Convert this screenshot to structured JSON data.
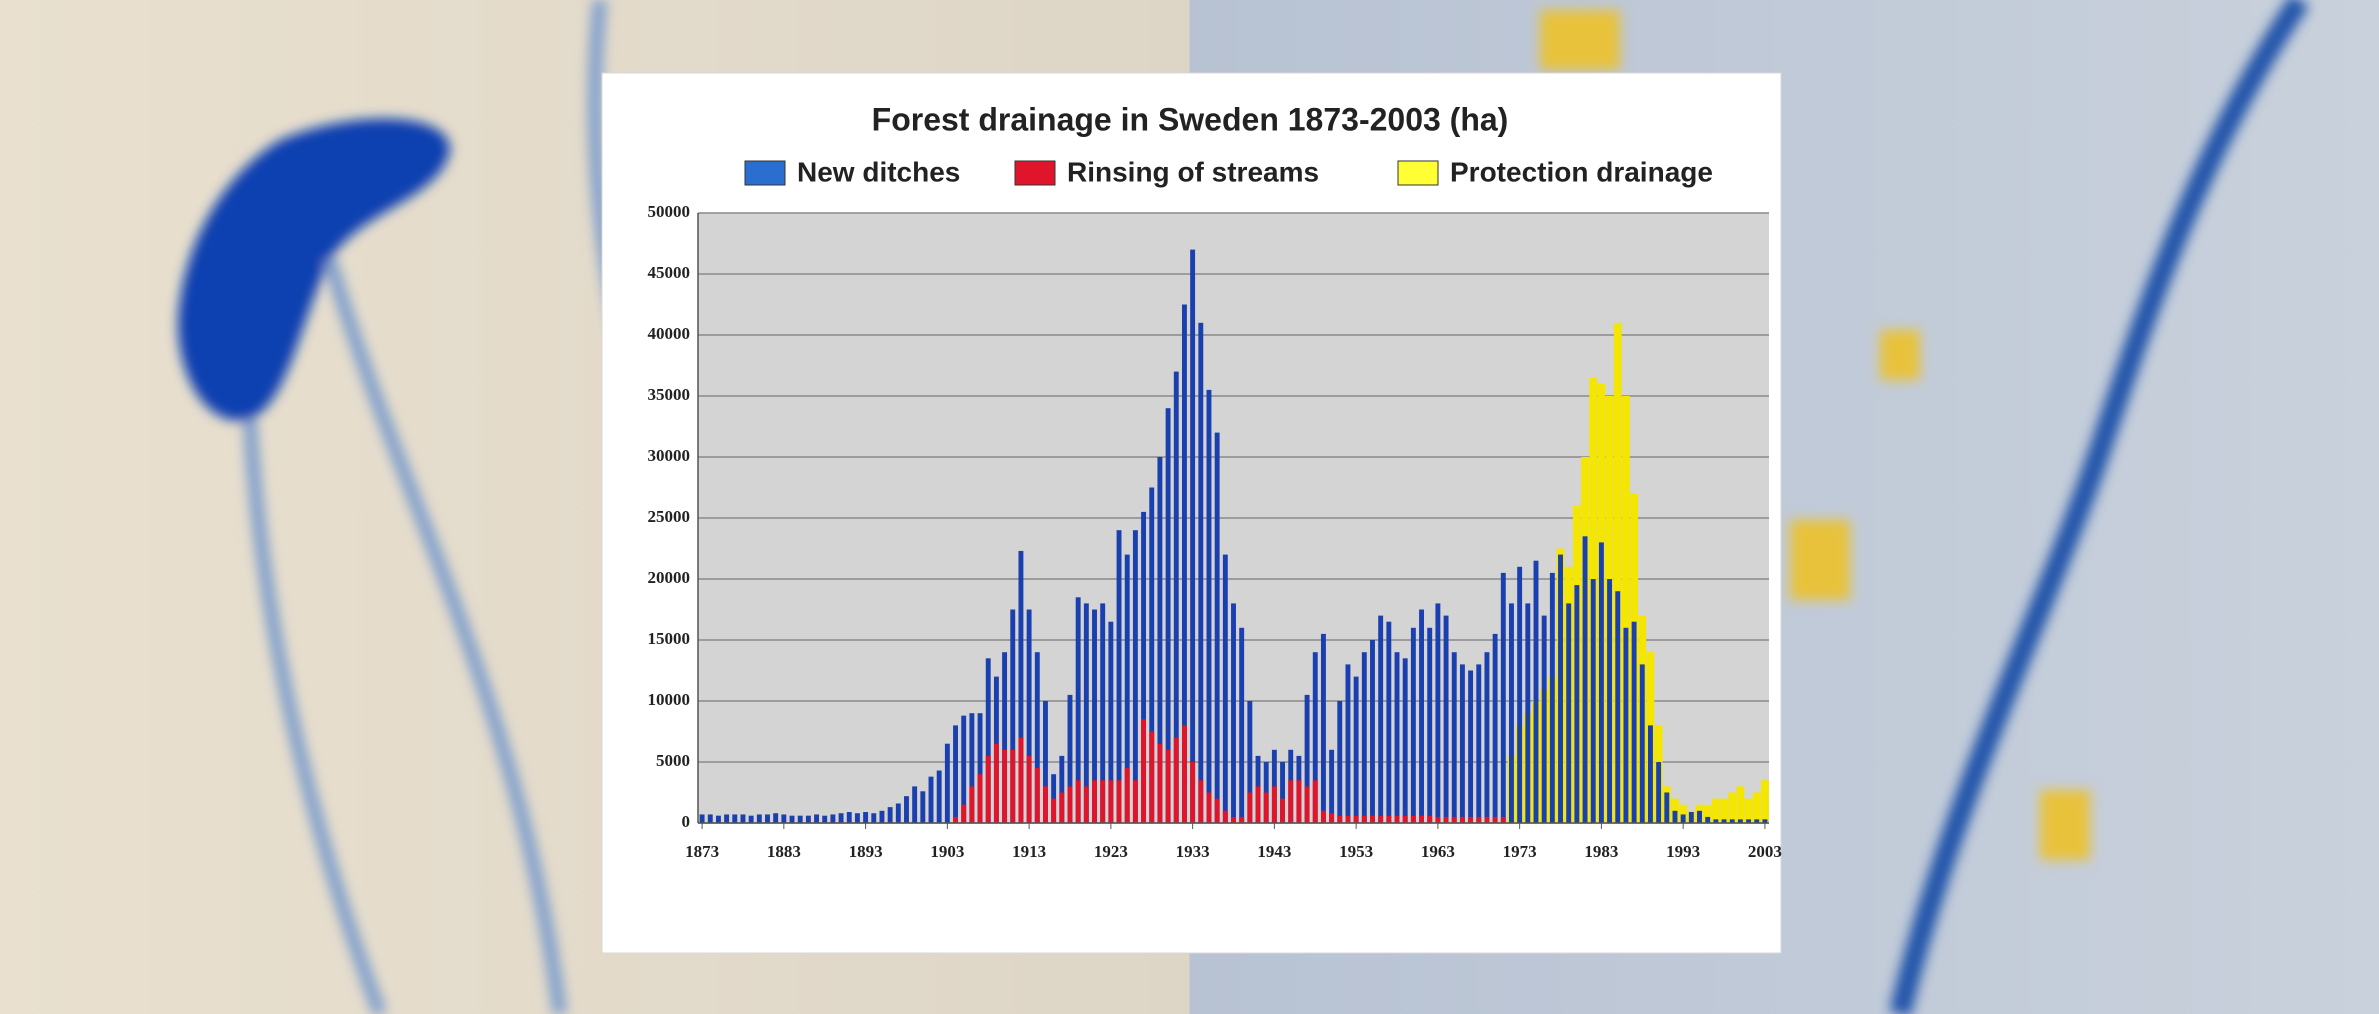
{
  "chart_data": {
    "type": "bar",
    "title": "Forest drainage in Sweden 1873-2003 (ha)",
    "x": [
      1873,
      1874,
      1875,
      1876,
      1877,
      1878,
      1879,
      1880,
      1881,
      1882,
      1883,
      1884,
      1885,
      1886,
      1887,
      1888,
      1889,
      1890,
      1891,
      1892,
      1893,
      1894,
      1895,
      1896,
      1897,
      1898,
      1899,
      1900,
      1901,
      1902,
      1903,
      1904,
      1905,
      1906,
      1907,
      1908,
      1909,
      1910,
      1911,
      1912,
      1913,
      1914,
      1915,
      1916,
      1917,
      1918,
      1919,
      1920,
      1921,
      1922,
      1923,
      1924,
      1925,
      1926,
      1927,
      1928,
      1929,
      1930,
      1931,
      1932,
      1933,
      1934,
      1935,
      1936,
      1937,
      1938,
      1939,
      1940,
      1941,
      1942,
      1943,
      1944,
      1945,
      1946,
      1947,
      1948,
      1949,
      1950,
      1951,
      1952,
      1953,
      1954,
      1955,
      1956,
      1957,
      1958,
      1959,
      1960,
      1961,
      1962,
      1963,
      1964,
      1965,
      1966,
      1967,
      1968,
      1969,
      1970,
      1971,
      1972,
      1973,
      1974,
      1975,
      1976,
      1977,
      1978,
      1979,
      1980,
      1981,
      1982,
      1983,
      1984,
      1985,
      1986,
      1987,
      1988,
      1989,
      1990,
      1991,
      1992,
      1993,
      1994,
      1995,
      1996,
      1997,
      1998,
      1999,
      2000,
      2001,
      2002,
      2003
    ],
    "series": [
      {
        "name": "New ditches",
        "color": "#1a3fae",
        "legend_color": "#2a6fd0",
        "values": [
          700,
          700,
          600,
          700,
          700,
          700,
          600,
          700,
          700,
          800,
          700,
          600,
          600,
          600,
          700,
          600,
          700,
          800,
          900,
          800,
          900,
          800,
          1000,
          1300,
          1600,
          2200,
          3000,
          2600,
          3800,
          4300,
          6500,
          8000,
          8800,
          9000,
          9000,
          13500,
          12000,
          14000,
          17500,
          22300,
          17500,
          14000,
          10000,
          4000,
          5500,
          10500,
          18500,
          18000,
          17500,
          18000,
          16500,
          24000,
          22000,
          24000,
          25500,
          27500,
          30000,
          34000,
          37000,
          42500,
          47000,
          41000,
          35500,
          32000,
          22000,
          18000,
          16000,
          10000,
          5500,
          5000,
          6000,
          5000,
          6000,
          5500,
          10500,
          14000,
          15500,
          6000,
          10000,
          13000,
          12000,
          14000,
          15000,
          17000,
          16500,
          14000,
          13500,
          16000,
          17500,
          16000,
          18000,
          17000,
          14000,
          13000,
          12500,
          13000,
          14000,
          15500,
          20500,
          18000,
          21000,
          18000,
          21500,
          17000,
          20500,
          22000,
          18000,
          19500,
          23500,
          20000,
          23000,
          20000,
          19000,
          16000,
          16500,
          13000,
          8000,
          5000,
          2500,
          1000,
          700,
          900,
          1000,
          500,
          300,
          300,
          300,
          300,
          300,
          300,
          300
        ]
      },
      {
        "name": "Rinsing of streams",
        "color": "#e0142a",
        "legend_color": "#e0142a",
        "values": [
          0,
          0,
          0,
          0,
          0,
          0,
          0,
          0,
          0,
          0,
          0,
          0,
          0,
          0,
          0,
          0,
          0,
          0,
          0,
          0,
          0,
          0,
          0,
          0,
          0,
          0,
          0,
          0,
          0,
          0,
          0,
          500,
          1500,
          3000,
          4000,
          5500,
          6500,
          6000,
          6000,
          7000,
          5500,
          4500,
          3000,
          2000,
          2500,
          3000,
          3500,
          3000,
          3500,
          3500,
          3500,
          3500,
          4500,
          3500,
          8500,
          7500,
          6500,
          6000,
          7000,
          8000,
          5000,
          3500,
          2500,
          2000,
          1000,
          500,
          500,
          2500,
          3000,
          2500,
          3000,
          2000,
          3500,
          3500,
          3000,
          3500,
          1000,
          800,
          600,
          600,
          600,
          600,
          600,
          600,
          600,
          600,
          600,
          600,
          600,
          600,
          500,
          500,
          500,
          500,
          500,
          500,
          500,
          500,
          500,
          0,
          0,
          0,
          0,
          0,
          0,
          0,
          0,
          0,
          0,
          0,
          0,
          0,
          0,
          0,
          0,
          0,
          0,
          0,
          0,
          0,
          0,
          0,
          0,
          0,
          0,
          0,
          0,
          0,
          0,
          0,
          0
        ]
      },
      {
        "name": "Protection drainage",
        "color": "#f5e600",
        "legend_color": "#ffff33",
        "values": [
          0,
          0,
          0,
          0,
          0,
          0,
          0,
          0,
          0,
          0,
          0,
          0,
          0,
          0,
          0,
          0,
          0,
          0,
          0,
          0,
          0,
          0,
          0,
          0,
          0,
          0,
          0,
          0,
          0,
          0,
          0,
          0,
          0,
          0,
          0,
          0,
          0,
          0,
          0,
          0,
          0,
          0,
          0,
          0,
          0,
          0,
          0,
          0,
          0,
          0,
          0,
          0,
          0,
          0,
          0,
          0,
          0,
          0,
          0,
          0,
          0,
          0,
          0,
          0,
          0,
          0,
          0,
          0,
          0,
          0,
          0,
          0,
          0,
          0,
          0,
          0,
          0,
          0,
          0,
          0,
          0,
          0,
          0,
          0,
          0,
          0,
          0,
          0,
          0,
          0,
          0,
          0,
          0,
          0,
          0,
          0,
          0,
          0,
          0,
          5500,
          8000,
          9000,
          10000,
          11000,
          12000,
          22500,
          21000,
          26000,
          30000,
          36500,
          36000,
          35000,
          41000,
          35000,
          27000,
          17000,
          14000,
          8000,
          3000,
          2000,
          1500,
          1000,
          1500,
          1500,
          2000,
          2000,
          2500,
          3000,
          2000,
          2500,
          3500
        ]
      }
    ],
    "xlim": [
      1872.5,
      2003.5
    ],
    "xticks": [
      1873,
      1883,
      1893,
      1903,
      1913,
      1923,
      1933,
      1943,
      1953,
      1963,
      1973,
      1983,
      1993,
      2003
    ],
    "ylim": [
      0,
      50000
    ],
    "yticks": [
      0,
      5000,
      10000,
      15000,
      20000,
      25000,
      30000,
      35000,
      40000,
      45000,
      50000
    ],
    "grid": true
  }
}
